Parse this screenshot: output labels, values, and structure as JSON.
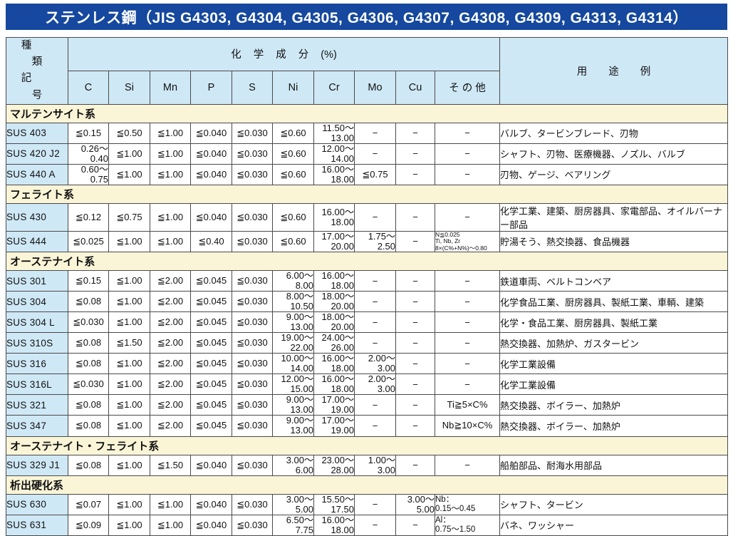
{
  "title": "ステンレス鋼（JIS G4303, G4304, G4305, G4306, G4307, G4308, G4309, G4313, G4314）",
  "colors": {
    "title_bar_blue": "#15489e",
    "header_cell_blue": "#cfe8f6",
    "section_band_yellow": "#fbf5d8",
    "border_gray": "#4a4a4a",
    "title_text": "#ffffff"
  },
  "table": {
    "header": {
      "kind": "種類",
      "symbol": "記号",
      "chem_group": "化学成分",
      "chem_unit": "(%)",
      "elements": [
        "C",
        "Si",
        "Mn",
        "P",
        "S",
        "Ni",
        "Cr",
        "Mo",
        "Cu",
        "その他"
      ],
      "usage": "用途例"
    },
    "sections": [
      {
        "name": "マルテンサイト系",
        "rows": [
          {
            "grade": "SUS 403",
            "values": [
              "≦0.15",
              "≦0.50",
              "≦1.00",
              "≦0.040",
              "≦0.030",
              "≦0.60",
              "11.50～\n13.00",
              "−",
              "−",
              "−"
            ],
            "usage": "バルブ、タービンブレード、刃物"
          },
          {
            "grade": "SUS 420 J2",
            "values": [
              "0.26～\n0.40",
              "≦1.00",
              "≦1.00",
              "≦0.040",
              "≦0.030",
              "≦0.60",
              "12.00～\n14.00",
              "−",
              "−",
              "−"
            ],
            "usage": "シャフト、刃物、医療機器、ノズル、バルブ"
          },
          {
            "grade": "SUS 440 A",
            "values": [
              "0.60～\n0.75",
              "≦1.00",
              "≦1.00",
              "≦0.040",
              "≦0.030",
              "≦0.60",
              "16.00～\n18.00",
              "≦0.75",
              "−",
              "−"
            ],
            "usage": "刃物、ゲージ、ベアリング"
          }
        ]
      },
      {
        "name": "フェライト系",
        "rows": [
          {
            "grade": "SUS 430",
            "values": [
              "≦0.12",
              "≦0.75",
              "≦1.00",
              "≦0.040",
              "≦0.030",
              "≦0.60",
              "16.00～\n18.00",
              "−",
              "−",
              "−"
            ],
            "usage": "化学工業、建築、厨房器具、家電部品、オイルバーナー部品"
          },
          {
            "grade": "SUS 444",
            "values": [
              "≦0.025",
              "≦1.00",
              "≦1.00",
              "≦0.40",
              "≦0.030",
              "≦0.60",
              "17.00～\n20.00",
              "1.75～\n2.50",
              "−",
              "N≦0.025\nTi, Nb, Zr\n8×(C%+N%)～0.80"
            ],
            "usage": "貯湯そう、熱交換器、食品機器"
          }
        ]
      },
      {
        "name": "オーステナイト系",
        "rows": [
          {
            "grade": "SUS 301",
            "values": [
              "≦0.15",
              "≦1.00",
              "≦2.00",
              "≦0.045",
              "≦0.030",
              "6.00～\n8.00",
              "16.00～\n18.00",
              "−",
              "−",
              "−"
            ],
            "usage": "鉄道車両、ベルトコンベア"
          },
          {
            "grade": "SUS 304",
            "values": [
              "≦0.08",
              "≦1.00",
              "≦2.00",
              "≦0.045",
              "≦0.030",
              "8.00～\n10.50",
              "18.00～\n20.00",
              "−",
              "−",
              "−"
            ],
            "usage": "化学食品工業、厨房器具、製紙工業、車輌、建築"
          },
          {
            "grade": "SUS 304 L",
            "values": [
              "≦0.030",
              "≦1.00",
              "≦2.00",
              "≦0.045",
              "≦0.030",
              "9.00～\n13.00",
              "18.00～\n20.00",
              "−",
              "−",
              "−"
            ],
            "usage": "化学・食品工業、厨房器具、製紙工業"
          },
          {
            "grade": "SUS 310S",
            "values": [
              "≦0.08",
              "≦1.50",
              "≦2.00",
              "≦0.045",
              "≦0.030",
              "19.00～\n22.00",
              "24.00～\n26.00",
              "−",
              "−",
              "−"
            ],
            "usage": "熱交換器、加熱炉、ガスタービン"
          },
          {
            "grade": "SUS 316",
            "values": [
              "≦0.08",
              "≦1.00",
              "≦2.00",
              "≦0.045",
              "≦0.030",
              "10.00～\n14.00",
              "16.00～\n18.00",
              "2.00～\n3.00",
              "−",
              "−"
            ],
            "usage": "化学工業設備"
          },
          {
            "grade": "SUS 316L",
            "values": [
              "≦0.030",
              "≦1.00",
              "≦2.00",
              "≦0.045",
              "≦0.030",
              "12.00～\n15.00",
              "16.00～\n18.00",
              "2.00～\n3.00",
              "−",
              "−"
            ],
            "usage": "化学工業設備"
          },
          {
            "grade": "SUS 321",
            "values": [
              "≦0.08",
              "≦1.00",
              "≦2.00",
              "≦0.045",
              "≦0.030",
              "9.00～\n13.00",
              "17.00～\n19.00",
              "−",
              "−",
              "Ti≧5×C%"
            ],
            "usage": "熱交換器、ボイラー、加熱炉"
          },
          {
            "grade": "SUS 347",
            "values": [
              "≦0.08",
              "≦1.00",
              "≦2.00",
              "≦0.045",
              "≦0.030",
              "9.00～\n13.00",
              "17.00～\n19.00",
              "−",
              "−",
              "Nb≧10×C%"
            ],
            "usage": "熱交換器、ボイラー、加熱炉"
          }
        ]
      },
      {
        "name": "オーステナイト・フェライト系",
        "rows": [
          {
            "grade": "SUS 329 J1",
            "values": [
              "≦0.08",
              "≦1.00",
              "≦1.50",
              "≦0.040",
              "≦0.030",
              "3.00～\n6.00",
              "23.00～\n28.00",
              "1.00～\n3.00",
              "−",
              "−"
            ],
            "usage": "船舶部品、耐海水用部品"
          }
        ]
      },
      {
        "name": "析出硬化系",
        "rows": [
          {
            "grade": "SUS 630",
            "values": [
              "≦0.07",
              "≦1.00",
              "≦1.00",
              "≦0.040",
              "≦0.030",
              "3.00～\n5.00",
              "15.50～\n17.50",
              "−",
              "3.00～\n5.00",
              "Nb：\n0.15～0.45"
            ],
            "usage": "シャフト、タービン"
          },
          {
            "grade": "SUS 631",
            "values": [
              "≦0.09",
              "≦1.00",
              "≦1.00",
              "≦0.040",
              "≦0.030",
              "6.50～\n7.75",
              "16.00～\n18.00",
              "−",
              "−",
              "Al：\n0.75～1.50"
            ],
            "usage": "バネ、ワッシャー"
          }
        ]
      }
    ]
  }
}
